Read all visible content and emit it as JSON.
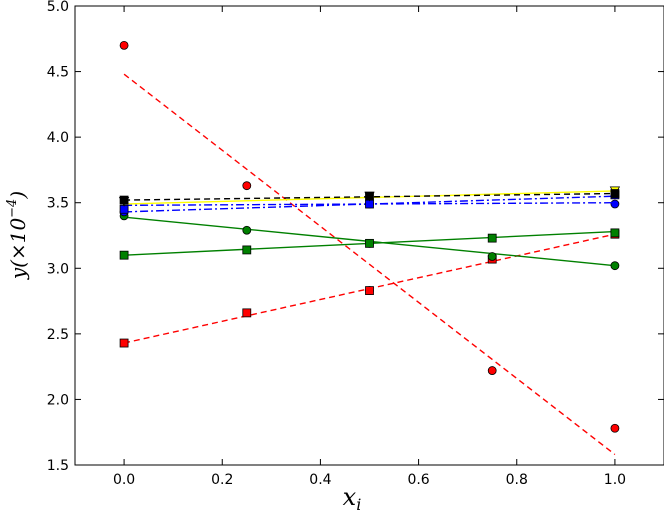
{
  "chart_data": {
    "type": "scatter",
    "xlabel": "x",
    "xlabel_sub": "i",
    "ylabel": "y(×10",
    "ylabel_exp": "−4",
    "ylabel_close": ")",
    "xlim": [
      -0.1,
      1.1
    ],
    "ylim": [
      1.5,
      5.0
    ],
    "x_ticks": [
      0.0,
      0.2,
      0.4,
      0.6,
      0.8,
      1.0
    ],
    "x_tick_labels": [
      "0.0",
      "0.2",
      "0.4",
      "0.6",
      "0.8",
      "1.0"
    ],
    "y_ticks": [
      1.5,
      2.0,
      2.5,
      3.0,
      3.5,
      4.0,
      4.5,
      5.0
    ],
    "y_tick_labels": [
      "1.5",
      "2.0",
      "2.5",
      "3.0",
      "3.5",
      "4.0",
      "4.5",
      "5.0"
    ],
    "grid": false,
    "series": [
      {
        "color": "#ff0000",
        "marker": "circle",
        "dash": "6,4",
        "x": [
          0.0,
          0.25,
          0.5,
          0.75,
          1.0
        ],
        "y": [
          4.7,
          3.63,
          2.83,
          2.22,
          1.78
        ],
        "fit": [
          [
            0.0,
            4.48
          ],
          [
            1.0,
            1.58
          ]
        ]
      },
      {
        "color": "#ff0000",
        "marker": "square",
        "dash": "6,4",
        "x": [
          0.0,
          0.25,
          0.5,
          0.75,
          1.0
        ],
        "y": [
          2.43,
          2.66,
          2.83,
          3.07,
          3.26
        ],
        "fit": [
          [
            0.0,
            2.43
          ],
          [
            1.0,
            3.26
          ]
        ]
      },
      {
        "color": "#008000",
        "marker": "circle",
        "dash": "",
        "x": [
          0.0,
          0.25,
          0.5,
          0.75,
          1.0
        ],
        "y": [
          3.4,
          3.29,
          3.19,
          3.09,
          3.02
        ],
        "fit": [
          [
            0.0,
            3.39
          ],
          [
            1.0,
            3.02
          ]
        ]
      },
      {
        "color": "#008000",
        "marker": "square",
        "dash": "",
        "x": [
          0.0,
          0.25,
          0.5,
          0.75,
          1.0
        ],
        "y": [
          3.1,
          3.14,
          3.19,
          3.23,
          3.27
        ],
        "fit": [
          [
            0.0,
            3.1
          ],
          [
            1.0,
            3.28
          ]
        ]
      },
      {
        "color": "#0000ff",
        "marker": "circle",
        "dash": "8,3,2,3",
        "x": [
          0.0,
          0.5,
          1.0
        ],
        "y": [
          3.43,
          3.49,
          3.49
        ],
        "fit": [
          [
            0.0,
            3.43
          ],
          [
            1.0,
            3.55
          ]
        ]
      },
      {
        "color": "#0000ff",
        "marker": "square",
        "dash": "8,3,2,3",
        "x": [
          0.0,
          0.5,
          1.0
        ],
        "y": [
          3.45,
          3.49,
          3.56
        ],
        "fit": [
          [
            0.0,
            3.48
          ],
          [
            1.0,
            3.5
          ]
        ]
      },
      {
        "color": "#ffff00",
        "marker": "triangle-down",
        "dash": "",
        "x": [
          0.0,
          0.5,
          1.0
        ],
        "y": [
          3.51,
          3.55,
          3.59
        ],
        "fit": [
          [
            0.0,
            3.49
          ],
          [
            1.0,
            3.59
          ]
        ]
      },
      {
        "color": "#000000",
        "marker": "square",
        "dash": "6,4",
        "x": [
          0.0,
          0.5,
          1.0
        ],
        "y": [
          3.52,
          3.55,
          3.57
        ],
        "fit": [
          [
            0.0,
            3.52
          ],
          [
            1.0,
            3.57
          ]
        ]
      }
    ]
  }
}
